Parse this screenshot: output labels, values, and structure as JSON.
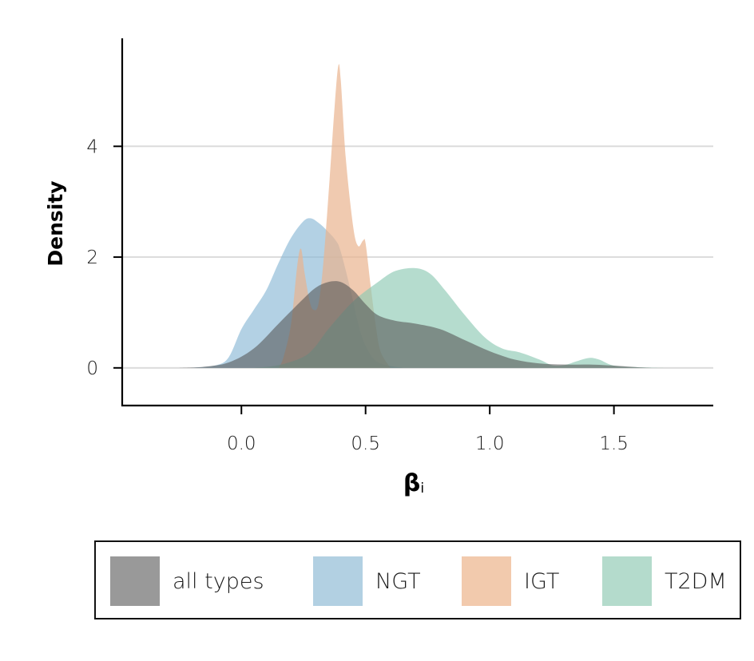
{
  "chart_data": {
    "type": "area",
    "kind": "kernel density estimate",
    "xlabel_main": "β",
    "xlabel_sub": "i",
    "ylabel": "Density",
    "xlim": [
      -0.48,
      1.9
    ],
    "ylim": [
      -0.68,
      5.95
    ],
    "xticks": [
      0.0,
      0.5,
      1.0,
      1.5
    ],
    "xtick_labels": [
      "0.0",
      "0.5",
      "1.0",
      "1.5"
    ],
    "yticks": [
      0,
      2,
      4
    ],
    "ytick_labels": [
      "0",
      "2",
      "4"
    ],
    "grid": "horizontal",
    "legend_position": "bottom",
    "series": [
      {
        "name": "NGT",
        "color": "#8ab8d6",
        "opacity": 0.65,
        "points": [
          [
            -0.2,
            0
          ],
          [
            -0.1,
            0.05
          ],
          [
            -0.05,
            0.2
          ],
          [
            0.0,
            0.7
          ],
          [
            0.05,
            1.05
          ],
          [
            0.1,
            1.4
          ],
          [
            0.15,
            1.9
          ],
          [
            0.2,
            2.35
          ],
          [
            0.25,
            2.65
          ],
          [
            0.28,
            2.7
          ],
          [
            0.31,
            2.62
          ],
          [
            0.34,
            2.5
          ],
          [
            0.38,
            2.3
          ],
          [
            0.4,
            2.1
          ],
          [
            0.44,
            1.4
          ],
          [
            0.47,
            0.8
          ],
          [
            0.5,
            0.4
          ],
          [
            0.55,
            0.1
          ],
          [
            0.65,
            0
          ]
        ]
      },
      {
        "name": "IGT",
        "color": "#eab48e",
        "opacity": 0.7,
        "points": [
          [
            0.15,
            0
          ],
          [
            0.17,
            0.2
          ],
          [
            0.2,
            0.8
          ],
          [
            0.225,
            1.85
          ],
          [
            0.24,
            2.15
          ],
          [
            0.255,
            1.7
          ],
          [
            0.275,
            1.2
          ],
          [
            0.29,
            1.05
          ],
          [
            0.31,
            1.15
          ],
          [
            0.33,
            1.9
          ],
          [
            0.355,
            3.4
          ],
          [
            0.375,
            4.7
          ],
          [
            0.39,
            5.45
          ],
          [
            0.4,
            5.2
          ],
          [
            0.42,
            3.8
          ],
          [
            0.45,
            2.55
          ],
          [
            0.47,
            2.2
          ],
          [
            0.49,
            2.3
          ],
          [
            0.5,
            2.25
          ],
          [
            0.52,
            1.5
          ],
          [
            0.54,
            0.8
          ],
          [
            0.56,
            0.3
          ],
          [
            0.6,
            0
          ]
        ]
      },
      {
        "name": "T2DM",
        "color": "#8dcab4",
        "opacity": 0.65,
        "points": [
          [
            0.05,
            0
          ],
          [
            0.15,
            0.05
          ],
          [
            0.25,
            0.2
          ],
          [
            0.3,
            0.4
          ],
          [
            0.35,
            0.7
          ],
          [
            0.45,
            1.2
          ],
          [
            0.55,
            1.55
          ],
          [
            0.62,
            1.75
          ],
          [
            0.7,
            1.8
          ],
          [
            0.76,
            1.7
          ],
          [
            0.82,
            1.4
          ],
          [
            0.9,
            0.95
          ],
          [
            0.98,
            0.55
          ],
          [
            1.05,
            0.35
          ],
          [
            1.12,
            0.28
          ],
          [
            1.2,
            0.15
          ],
          [
            1.25,
            0.05
          ],
          [
            1.3,
            0.05
          ],
          [
            1.35,
            0.12
          ],
          [
            1.4,
            0.18
          ],
          [
            1.44,
            0.15
          ],
          [
            1.5,
            0.04
          ],
          [
            1.6,
            0.01
          ],
          [
            1.7,
            0
          ]
        ]
      },
      {
        "name": "all types",
        "color": "#555555",
        "opacity": 0.58,
        "points": [
          [
            -0.25,
            0
          ],
          [
            -0.15,
            0.02
          ],
          [
            -0.05,
            0.1
          ],
          [
            0.05,
            0.35
          ],
          [
            0.15,
            0.8
          ],
          [
            0.25,
            1.25
          ],
          [
            0.3,
            1.45
          ],
          [
            0.35,
            1.55
          ],
          [
            0.4,
            1.55
          ],
          [
            0.45,
            1.4
          ],
          [
            0.5,
            1.15
          ],
          [
            0.55,
            0.95
          ],
          [
            0.62,
            0.85
          ],
          [
            0.7,
            0.8
          ],
          [
            0.8,
            0.7
          ],
          [
            0.9,
            0.5
          ],
          [
            1.0,
            0.3
          ],
          [
            1.1,
            0.15
          ],
          [
            1.2,
            0.08
          ],
          [
            1.3,
            0.06
          ],
          [
            1.4,
            0.06
          ],
          [
            1.5,
            0.04
          ],
          [
            1.6,
            0.01
          ],
          [
            1.65,
            0
          ]
        ]
      }
    ]
  },
  "legend": {
    "items": [
      {
        "label": "all types",
        "color": "#999999"
      },
      {
        "label": "NGT",
        "color": "#b2d0e2"
      },
      {
        "label": "IGT",
        "color": "#f2caad"
      },
      {
        "label": "T2DM",
        "color": "#b4dbcc"
      }
    ]
  }
}
